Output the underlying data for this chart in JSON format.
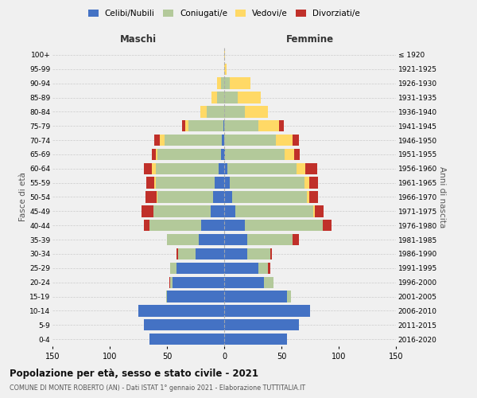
{
  "age_groups": [
    "0-4",
    "5-9",
    "10-14",
    "15-19",
    "20-24",
    "25-29",
    "30-34",
    "35-39",
    "40-44",
    "45-49",
    "50-54",
    "55-59",
    "60-64",
    "65-69",
    "70-74",
    "75-79",
    "80-84",
    "85-89",
    "90-94",
    "95-99",
    "100+"
  ],
  "birth_years": [
    "2016-2020",
    "2011-2015",
    "2006-2010",
    "2001-2005",
    "1996-2000",
    "1991-1995",
    "1986-1990",
    "1981-1985",
    "1976-1980",
    "1971-1975",
    "1966-1970",
    "1961-1965",
    "1956-1960",
    "1951-1955",
    "1946-1950",
    "1941-1945",
    "1936-1940",
    "1931-1935",
    "1926-1930",
    "1921-1925",
    "≤ 1920"
  ],
  "male": {
    "celibi": [
      65,
      70,
      75,
      50,
      45,
      42,
      25,
      22,
      20,
      12,
      10,
      8,
      5,
      3,
      2,
      1,
      0,
      0,
      0,
      0,
      0
    ],
    "coniugati": [
      0,
      0,
      0,
      1,
      2,
      5,
      15,
      28,
      45,
      50,
      48,
      52,
      55,
      55,
      50,
      30,
      15,
      6,
      3,
      0,
      0
    ],
    "vedovi": [
      0,
      0,
      0,
      0,
      0,
      0,
      0,
      0,
      0,
      0,
      1,
      1,
      3,
      2,
      4,
      3,
      6,
      5,
      3,
      0,
      0
    ],
    "divorziati": [
      0,
      0,
      0,
      0,
      1,
      0,
      2,
      0,
      5,
      10,
      10,
      7,
      7,
      3,
      5,
      3,
      0,
      0,
      0,
      0,
      0
    ]
  },
  "female": {
    "nubili": [
      55,
      65,
      75,
      55,
      35,
      30,
      20,
      20,
      18,
      10,
      7,
      5,
      3,
      1,
      0,
      0,
      0,
      0,
      0,
      0,
      0
    ],
    "coniugate": [
      0,
      0,
      0,
      3,
      8,
      8,
      20,
      40,
      68,
      68,
      65,
      65,
      60,
      52,
      45,
      30,
      18,
      12,
      5,
      0,
      0
    ],
    "vedove": [
      0,
      0,
      0,
      0,
      0,
      0,
      0,
      0,
      0,
      1,
      2,
      4,
      8,
      8,
      15,
      18,
      20,
      20,
      18,
      2,
      1
    ],
    "divorziate": [
      0,
      0,
      0,
      0,
      0,
      2,
      2,
      5,
      8,
      8,
      8,
      8,
      10,
      5,
      5,
      4,
      0,
      0,
      0,
      0,
      0
    ]
  },
  "colors": {
    "celibi": "#4472C4",
    "coniugati": "#b3c99a",
    "vedovi": "#ffd966",
    "divorziati": "#c0302a"
  },
  "title": "Popolazione per età, sesso e stato civile - 2021",
  "subtitle": "COMUNE DI MONTE ROBERTO (AN) - Dati ISTAT 1° gennaio 2021 - Elaborazione TUTTITALIA.IT",
  "xlabel_left": "Maschi",
  "xlabel_right": "Femmine",
  "ylabel_left": "Fasce di età",
  "ylabel_right": "Anni di nascita",
  "xlim": 150,
  "bg_color": "#f0f0f0",
  "grid_color": "#cccccc",
  "legend_labels": [
    "Celibi/Nubili",
    "Coniugati/e",
    "Vedovi/e",
    "Divorziati/e"
  ]
}
